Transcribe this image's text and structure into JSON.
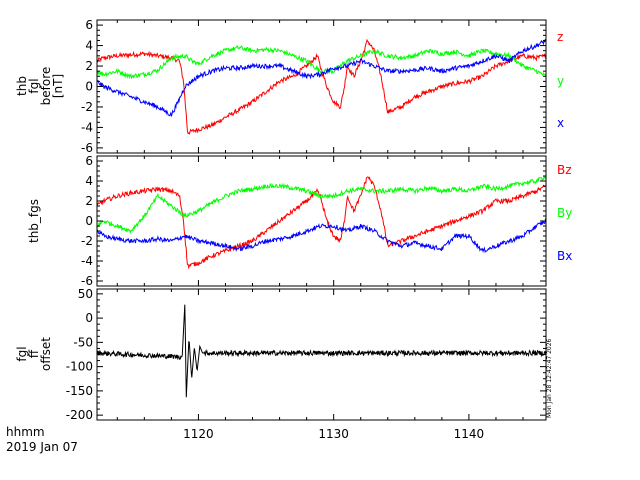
{
  "figure": {
    "footer_line1": "hhmm",
    "footer_line2": "2019 Jan 07",
    "timestamp": "Mon Jan 28 12:42:47 2026"
  },
  "chart_data": [
    {
      "type": "line",
      "ylabel": [
        "thb",
        "fgl",
        "before",
        "[nT]"
      ],
      "xlim": [
        1112.5,
        1145.7
      ],
      "ylim": [
        -6.5,
        6.5
      ],
      "yticks": [
        -6,
        -4,
        -2,
        0,
        2,
        4,
        6
      ],
      "series": [
        {
          "name": "z",
          "color": "#ff0000",
          "x": [
            1112.5,
            1113,
            1114,
            1115,
            1116,
            1117,
            1118,
            1118.6,
            1118.9,
            1119.2,
            1120,
            1121,
            1122,
            1123,
            1124,
            1125,
            1126,
            1127,
            1128,
            1128.8,
            1129,
            1129.5,
            1130,
            1130.5,
            1130.8,
            1131,
            1131.5,
            1132,
            1132.5,
            1133,
            1133.5,
            1134,
            1135,
            1136,
            1137,
            1138,
            1139,
            1140,
            1141,
            1142,
            1143,
            1144,
            1145,
            1145.7
          ],
          "y": [
            2.5,
            2.8,
            3.0,
            3.1,
            3.2,
            3.0,
            2.8,
            2.5,
            0.5,
            -4.5,
            -4.2,
            -3.8,
            -3.0,
            -2.3,
            -1.5,
            -0.5,
            0.5,
            1.0,
            2.0,
            3.0,
            2.0,
            0.0,
            -1.5,
            -2.0,
            0.0,
            2.0,
            1.0,
            2.5,
            4.5,
            3.5,
            1.0,
            -2.5,
            -2.0,
            -1.0,
            -0.5,
            0.0,
            0.3,
            0.5,
            1.0,
            2.0,
            2.5,
            3.0,
            2.8,
            3.0
          ]
        },
        {
          "name": "y",
          "color": "#00ff00",
          "x": [
            1112.5,
            1113,
            1114,
            1115,
            1116,
            1117,
            1118,
            1119,
            1119.5,
            1120,
            1121,
            1122,
            1123,
            1124,
            1125,
            1126,
            1127,
            1128,
            1129,
            1130,
            1131,
            1132,
            1133,
            1133.5,
            1134,
            1135,
            1136,
            1137,
            1138,
            1139,
            1140,
            1141,
            1142,
            1143,
            1144,
            1145,
            1145.7
          ],
          "y": [
            1.5,
            1.2,
            1.5,
            1.0,
            1.2,
            1.6,
            2.8,
            3.0,
            2.5,
            2.2,
            3.0,
            3.5,
            3.8,
            3.5,
            3.6,
            3.5,
            3.0,
            2.5,
            1.5,
            1.5,
            2.5,
            3.0,
            3.5,
            3.2,
            3.0,
            2.8,
            3.0,
            3.5,
            3.2,
            3.4,
            3.0,
            3.5,
            3.2,
            3.0,
            2.0,
            1.5,
            1.0
          ]
        },
        {
          "name": "x",
          "color": "#0000ff",
          "x": [
            1112.5,
            1113,
            1114,
            1115,
            1116,
            1117,
            1118,
            1118.5,
            1119,
            1119.5,
            1120,
            1121,
            1122,
            1123,
            1124,
            1125,
            1126,
            1127,
            1128,
            1129,
            1130,
            1131,
            1132,
            1133,
            1134,
            1135,
            1136,
            1137,
            1138,
            1139,
            1140,
            1141,
            1142,
            1143,
            1144,
            1145,
            1145.7
          ],
          "y": [
            0.5,
            0.0,
            -0.5,
            -1.0,
            -1.5,
            -2.0,
            -2.8,
            -1.5,
            0.0,
            0.5,
            1.0,
            1.5,
            1.8,
            1.8,
            2.0,
            2.0,
            2.0,
            1.5,
            1.0,
            1.2,
            1.8,
            2.0,
            2.5,
            2.0,
            1.5,
            1.5,
            1.6,
            1.8,
            1.5,
            1.8,
            2.0,
            2.5,
            3.0,
            2.5,
            3.5,
            4.0,
            4.5
          ]
        }
      ]
    },
    {
      "type": "line",
      "ylabel": [
        "thb_fgs"
      ],
      "xlim": [
        1112.5,
        1145.7
      ],
      "ylim": [
        -6.5,
        6.5
      ],
      "yticks": [
        -6,
        -4,
        -2,
        0,
        2,
        4,
        6
      ],
      "series": [
        {
          "name": "Bz",
          "color": "#ff0000",
          "x": [
            1112.5,
            1113,
            1114,
            1115,
            1116,
            1117,
            1118,
            1118.6,
            1118.9,
            1119.2,
            1120,
            1121,
            1122,
            1123,
            1124,
            1125,
            1126,
            1127,
            1128,
            1128.8,
            1129,
            1129.5,
            1130,
            1130.5,
            1130.8,
            1131,
            1131.5,
            1132,
            1132.5,
            1133,
            1133.5,
            1134,
            1135,
            1136,
            1137,
            1138,
            1139,
            1140,
            1141,
            1142,
            1143,
            1144,
            1145,
            1145.7
          ],
          "y": [
            1.5,
            2.0,
            2.5,
            2.8,
            3.0,
            3.2,
            3.0,
            2.5,
            0.0,
            -4.5,
            -4.2,
            -3.5,
            -3.0,
            -2.5,
            -2.0,
            -1.0,
            0.0,
            1.0,
            2.0,
            3.0,
            2.5,
            0.0,
            -1.5,
            -2.0,
            0.0,
            2.5,
            1.0,
            2.5,
            4.5,
            3.5,
            1.0,
            -2.5,
            -2.0,
            -1.5,
            -1.0,
            -0.5,
            0.0,
            0.5,
            1.0,
            2.0,
            2.0,
            2.5,
            3.0,
            3.5
          ]
        },
        {
          "name": "By",
          "color": "#00ff00",
          "x": [
            1112.5,
            1113,
            1114,
            1115,
            1116,
            1117,
            1118,
            1119,
            1120,
            1121,
            1122,
            1123,
            1124,
            1125,
            1126,
            1127,
            1128,
            1129,
            1130,
            1131,
            1132,
            1133,
            1134,
            1135,
            1136,
            1137,
            1138,
            1139,
            1140,
            1141,
            1142,
            1143,
            1144,
            1145,
            1145.7
          ],
          "y": [
            -0.5,
            0.0,
            -0.5,
            -1.0,
            0.5,
            2.5,
            1.5,
            0.5,
            1.0,
            1.8,
            2.5,
            3.0,
            3.2,
            3.5,
            3.5,
            3.3,
            3.0,
            2.5,
            2.5,
            3.0,
            3.2,
            3.0,
            3.0,
            3.2,
            3.0,
            3.3,
            3.0,
            3.2,
            3.0,
            3.5,
            3.2,
            3.5,
            3.8,
            4.0,
            4.5
          ]
        },
        {
          "name": "Bx",
          "color": "#0000ff",
          "x": [
            1112.5,
            1113,
            1114,
            1115,
            1116,
            1117,
            1118,
            1119,
            1120,
            1121,
            1122,
            1123,
            1124,
            1125,
            1126,
            1127,
            1128,
            1129,
            1130,
            1131,
            1132,
            1133,
            1134,
            1135,
            1136,
            1137,
            1138,
            1139,
            1140,
            1141,
            1142,
            1143,
            1144,
            1145,
            1145.7
          ],
          "y": [
            -1.0,
            -1.5,
            -1.8,
            -2.0,
            -2.0,
            -1.8,
            -2.0,
            -1.5,
            -2.0,
            -2.2,
            -2.5,
            -2.8,
            -2.5,
            -2.0,
            -1.8,
            -1.5,
            -1.0,
            -0.5,
            -0.5,
            -1.0,
            -0.5,
            -1.0,
            -2.0,
            -2.5,
            -2.2,
            -2.5,
            -2.8,
            -1.5,
            -1.5,
            -3.0,
            -2.5,
            -2.0,
            -1.5,
            -0.5,
            0.0
          ]
        }
      ]
    },
    {
      "type": "line",
      "ylabel": [
        "fgl",
        "ff",
        "offset"
      ],
      "xlim": [
        1112.5,
        1145.7
      ],
      "ylim": [
        -210,
        60
      ],
      "yticks": [
        -200,
        -150,
        -100,
        -50,
        0,
        50
      ],
      "xticks": [
        1120,
        1130,
        1140
      ],
      "xticklabels": [
        "1120",
        "1130",
        "1140"
      ],
      "series": [
        {
          "name": "",
          "color": "#000000",
          "x": [
            1112.5,
            1118.8,
            1119.0,
            1119.1,
            1119.3,
            1119.5,
            1119.7,
            1119.9,
            1120.1,
            1120.3,
            1145.7
          ],
          "y": [
            -72,
            -80,
            32,
            -165,
            -40,
            -125,
            -60,
            -110,
            -58,
            -72,
            -72
          ]
        }
      ]
    }
  ]
}
